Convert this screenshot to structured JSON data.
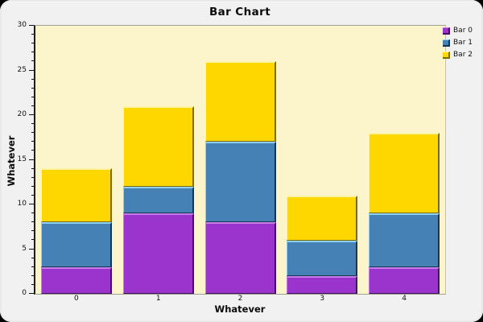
{
  "chart_data": {
    "type": "bar",
    "stacked": true,
    "title": "Bar Chart",
    "xlabel": "Whatever",
    "ylabel": "Whatever",
    "categories": [
      "0",
      "1",
      "2",
      "3",
      "4"
    ],
    "series": [
      {
        "name": "Bar 0",
        "values": [
          3,
          9,
          8,
          2,
          3
        ],
        "color": "#9a34cd",
        "highlight": "#c77de7",
        "shadow": "#451061"
      },
      {
        "name": "Bar 1",
        "values": [
          5,
          3,
          9,
          4,
          6
        ],
        "color": "#4681b5",
        "highlight": "#8fd0f5",
        "shadow": "#173450"
      },
      {
        "name": "Bar 2",
        "values": [
          6,
          9,
          9,
          5,
          9
        ],
        "color": "#ffd700",
        "highlight": "#fff3a6",
        "shadow": "#7a6a08"
      }
    ],
    "stack_totals": [
      14,
      21,
      26,
      11,
      18
    ],
    "ylim": [
      0,
      30
    ],
    "y_major_tick_step": 5,
    "y_minor_tick_step": 1,
    "grid": false,
    "legend_position": "top-right",
    "plot_background": "#fcf5cc",
    "panel_background": "#f1f1f2",
    "outer_background": "#000000"
  }
}
